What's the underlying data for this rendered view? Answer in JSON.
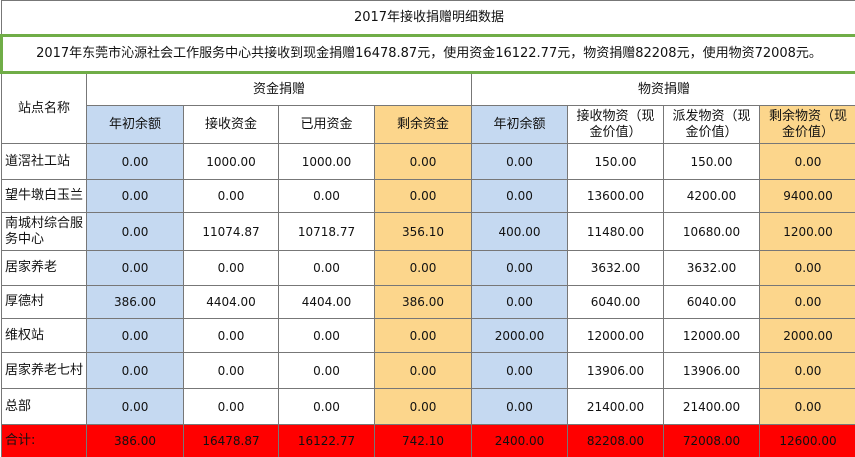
{
  "title": "2017年接收捐赠明细数据",
  "summary": "2017年东莞市沁源社会工作服务中心共接收到现金捐赠16478.87元，使用资金16122.77元，物资捐赠82208元，使用物资72008元。",
  "header": {
    "site": "站点名称",
    "groups": [
      "资金捐赠",
      "物资捐赠"
    ],
    "columns": [
      "年初余额",
      "接收资金",
      "已用资金",
      "剩余资金",
      "年初余额",
      "接收物资（现金价值）",
      "派发物资（现金价值）",
      "剩余物资（现金价值）"
    ]
  },
  "rows": [
    [
      "道滘社工站",
      "0.00",
      "1000.00",
      "1000.00",
      "0.00",
      "0.00",
      "150.00",
      "150.00",
      "0.00"
    ],
    [
      "望牛墩白玉兰",
      "0.00",
      "0.00",
      "0.00",
      "0.00",
      "0.00",
      "13600.00",
      "4200.00",
      "9400.00"
    ],
    [
      "南城村综合服务中心",
      "0.00",
      "11074.87",
      "10718.77",
      "356.10",
      "400.00",
      "11480.00",
      "10680.00",
      "1200.00"
    ],
    [
      "居家养老",
      "0.00",
      "0.00",
      "0.00",
      "0.00",
      "0.00",
      "3632.00",
      "3632.00",
      "0.00"
    ],
    [
      "厚德村",
      "386.00",
      "4404.00",
      "4404.00",
      "386.00",
      "0.00",
      "6040.00",
      "6040.00",
      "0.00"
    ],
    [
      "维权站",
      "0.00",
      "0.00",
      "0.00",
      "0.00",
      "2000.00",
      "12000.00",
      "12000.00",
      "2000.00"
    ],
    [
      "居家养老七村",
      "0.00",
      "0.00",
      "0.00",
      "0.00",
      "0.00",
      "13906.00",
      "13906.00",
      "0.00"
    ],
    [
      "总部",
      "0.00",
      "0.00",
      "0.00",
      "0.00",
      "0.00",
      "21400.00",
      "21400.00",
      "0.00"
    ]
  ],
  "total": [
    "合计:",
    "386.00",
    "16478.87",
    "16122.77",
    "742.10",
    "2400.00",
    "82208.00",
    "72008.00",
    "12600.00"
  ]
}
